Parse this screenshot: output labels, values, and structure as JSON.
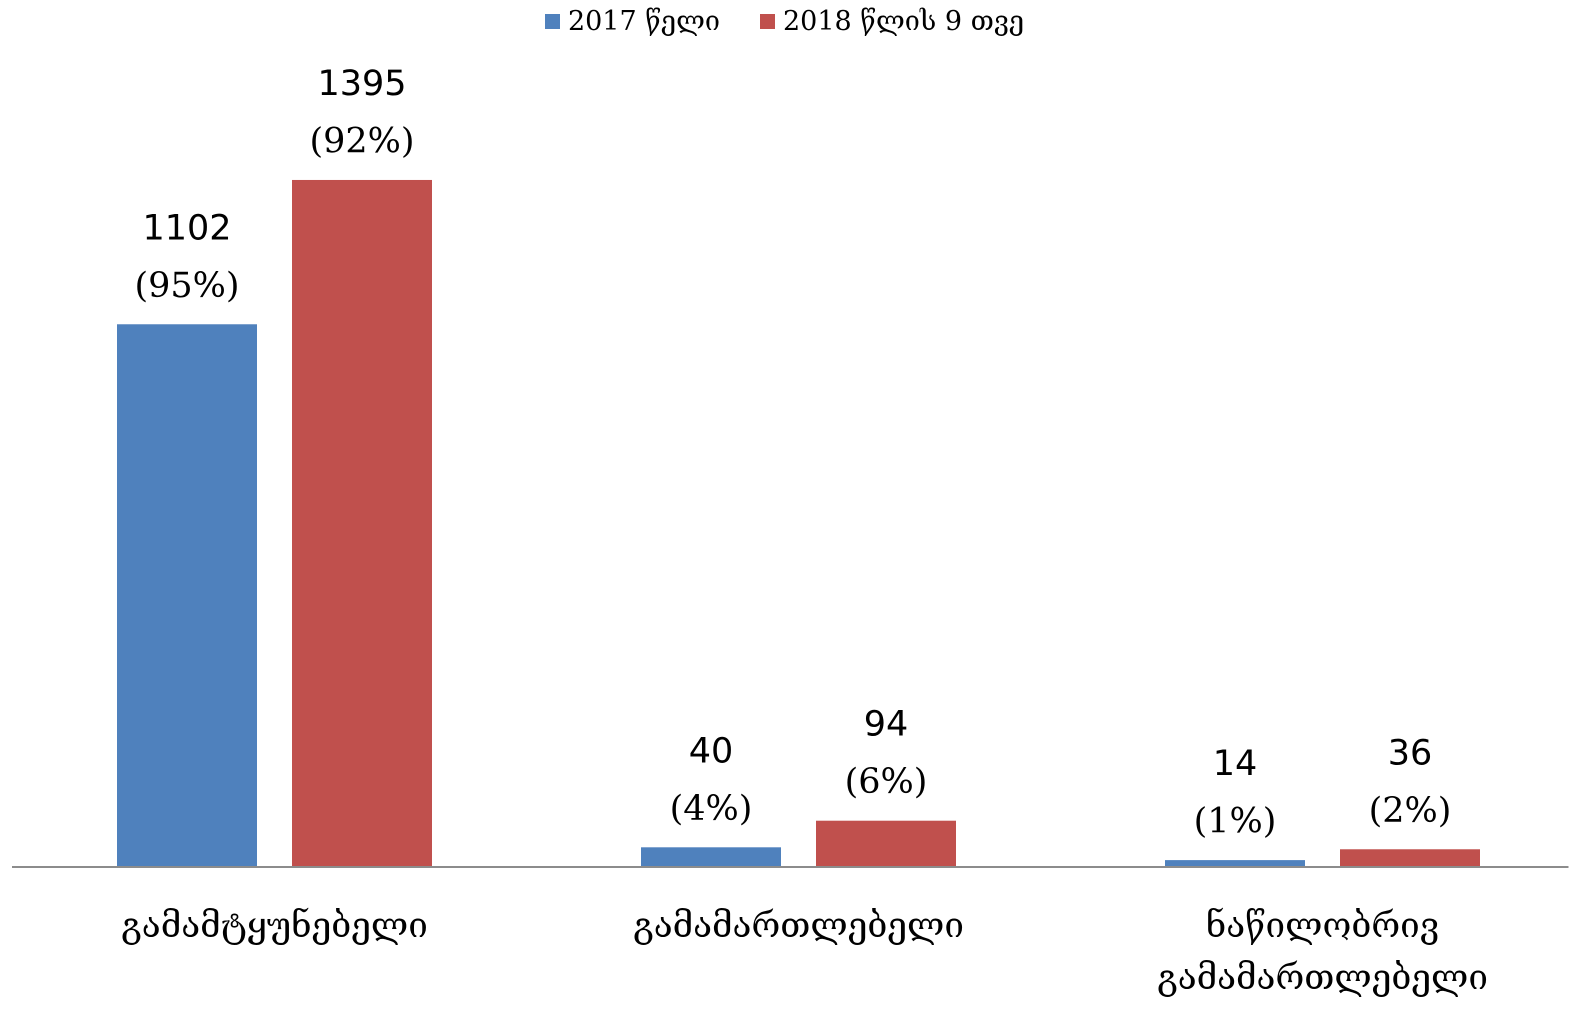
{
  "chart_data": {
    "type": "bar",
    "categories": [
      "გამამტყუნებელი",
      "გამამართლებელი",
      "ნაწილობრივ გამამართლებელი"
    ],
    "series": [
      {
        "name": "2017 წელი",
        "color": "#4f81bd",
        "values": [
          1102,
          40,
          14
        ],
        "share_labels": [
          "(95%)",
          "(4%)",
          "(1%)"
        ]
      },
      {
        "name": "2018 წლის 9 თვე",
        "color": "#c0504d",
        "values": [
          1395,
          94,
          36
        ],
        "share_labels": [
          "(92%)",
          "(6%)",
          "(2%)"
        ]
      }
    ],
    "ylim": [
      0,
      1600
    ],
    "legend": "top"
  }
}
